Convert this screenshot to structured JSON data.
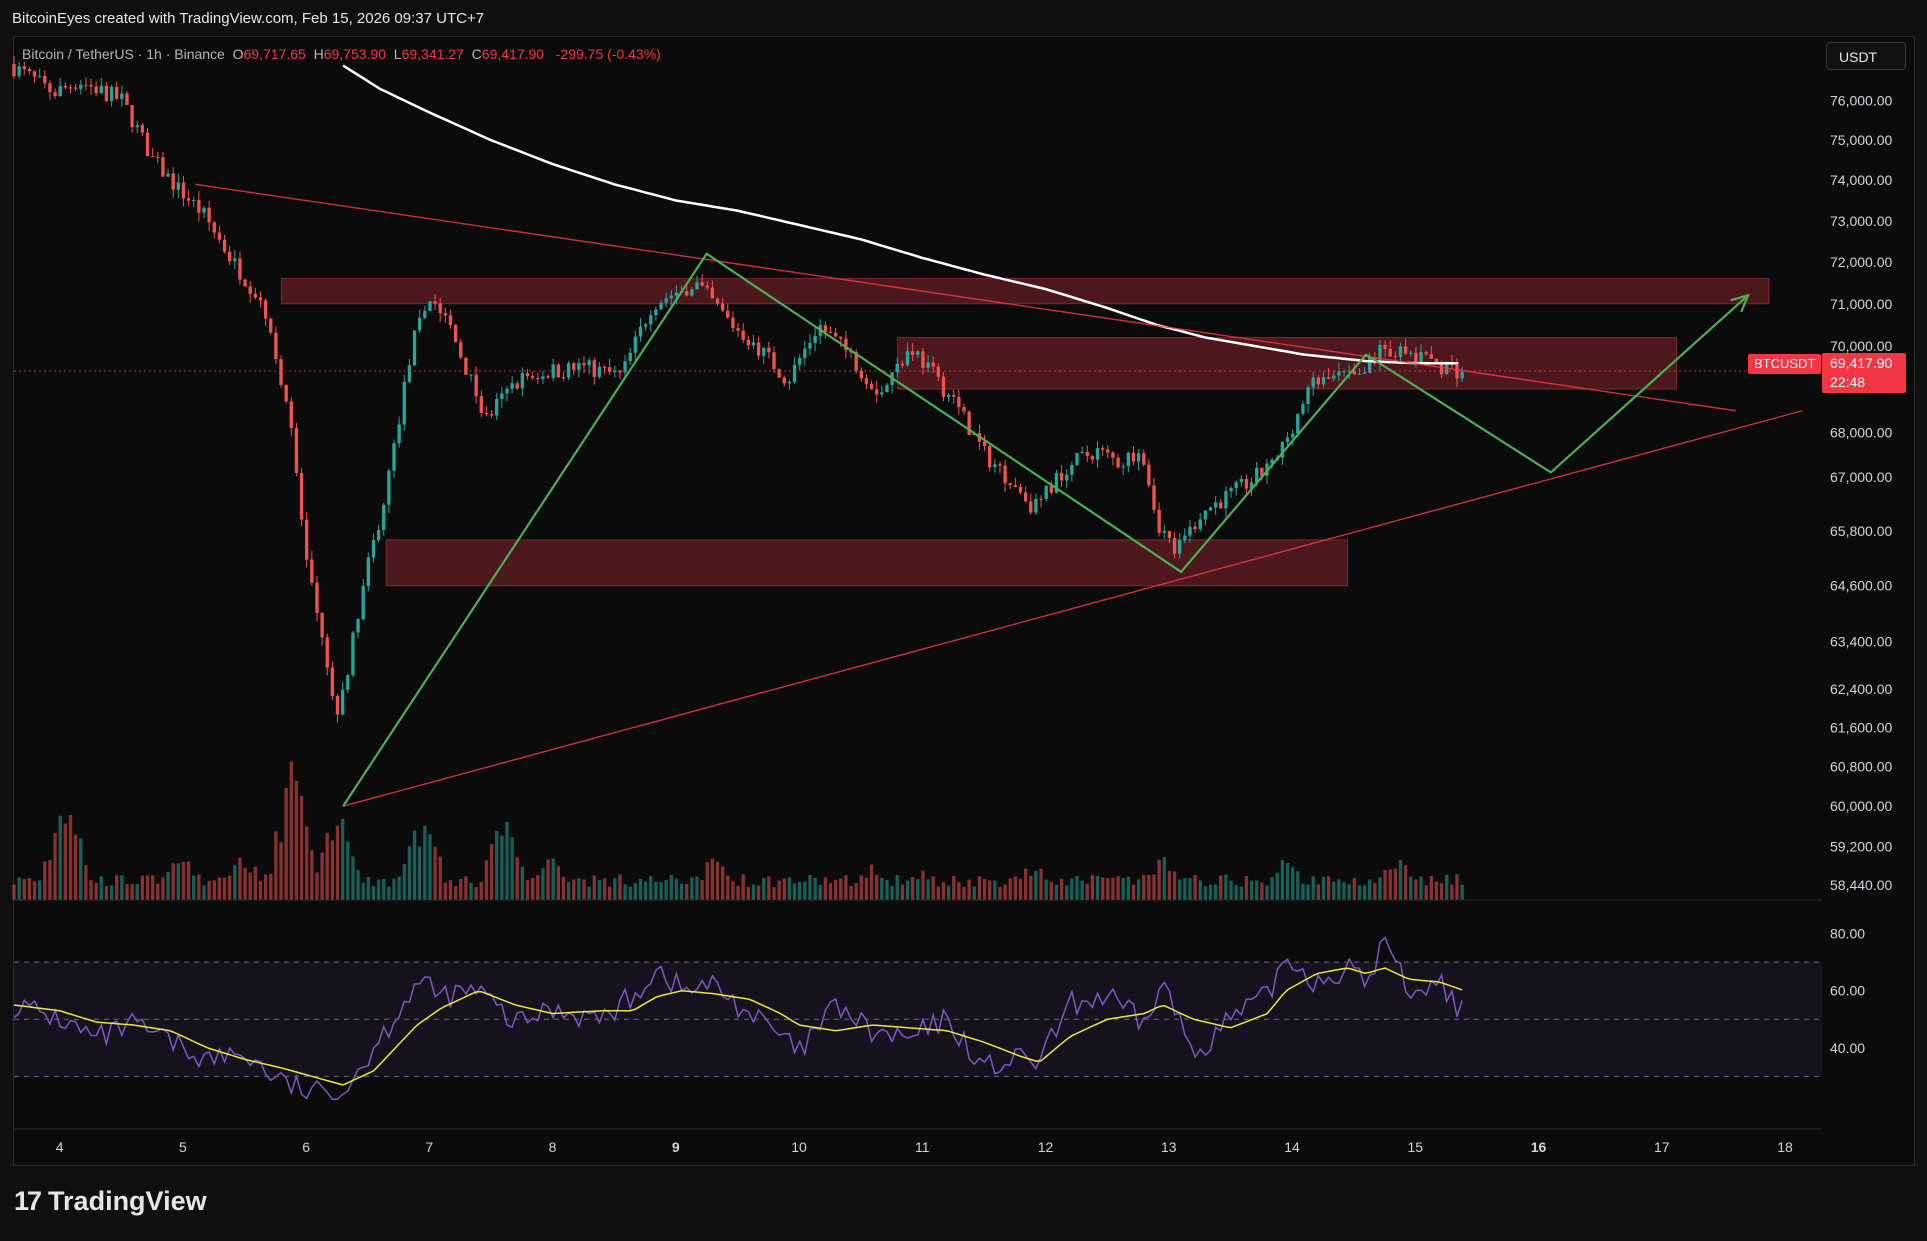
{
  "header": {
    "text": "BitcoinEyes created with TradingView.com, Feb 15, 2026 09:37 UTC+7"
  },
  "legend": {
    "symbol": "Bitcoin / TetherUS · 1h · Binance",
    "open_label": "O",
    "open": "69,717.65",
    "high_label": "H",
    "high": "69,753.90",
    "low_label": "L",
    "low": "69,341.27",
    "close_label": "C",
    "close": "69,417.90",
    "change": "-299.75 (-0.43%)"
  },
  "currency": "USDT",
  "symbol_tag": "BTCUSDT",
  "last_price": "69,417.90",
  "countdown": "22:48",
  "footer": {
    "brand": "TradingView",
    "logo_icon": "tradingview-logo-icon"
  },
  "colors": {
    "bull": "#26a69a",
    "bear": "#ef5350",
    "ma": "#ffffff",
    "rsi": "#7e57c2",
    "rsi_ma": "#e8e83a",
    "pattern": "#4caf50",
    "trend": "#f23645",
    "zone": "#5c1a22"
  },
  "chart_data": [
    {
      "type": "candlestick",
      "title": "",
      "price_axis_labels": [
        "76,000.00",
        "75,000.00",
        "74,000.00",
        "73,000.00",
        "72,000.00",
        "71,000.00",
        "70,000.00",
        "68,000.00",
        "67,000.00",
        "65,800.00",
        "64,600.00",
        "63,400.00",
        "62,400.00",
        "61,600.00",
        "60,800.00",
        "60,000.00",
        "59,200.00",
        "58,440.00"
      ],
      "x_axis_labels": [
        "4",
        "5",
        "6",
        "7",
        "8",
        "9",
        "10",
        "11",
        "12",
        "13",
        "14",
        "15",
        "16",
        "17",
        "18"
      ],
      "scale": "log",
      "y_range": [
        58300,
        77300
      ],
      "x_range_days": [
        3.63,
        18.3
      ],
      "ohlc_path_days": [
        3.6,
        4.0,
        4.2,
        4.55,
        4.8,
        5.0,
        5.2,
        5.45,
        5.7,
        5.9,
        6.05,
        6.2,
        6.3,
        6.5,
        6.7,
        6.9,
        7.05,
        7.2,
        7.5,
        7.75,
        8.0,
        8.3,
        8.6,
        8.85,
        9.2,
        9.5,
        9.7,
        9.95,
        10.2,
        10.45,
        10.7,
        10.95,
        11.3,
        11.55,
        11.8,
        11.95,
        12.2,
        12.45,
        12.65,
        12.82,
        12.95,
        13.1,
        13.3,
        13.6,
        13.9,
        14.2,
        14.45,
        14.6,
        14.75,
        14.95,
        15.2,
        15.4
      ],
      "ohlc_path_prices": [
        77000,
        76200,
        76500,
        76000,
        74500,
        73800,
        73200,
        72000,
        71000,
        68500,
        65000,
        63000,
        61800,
        64500,
        66800,
        70000,
        71200,
        70500,
        68300,
        69200,
        69400,
        69500,
        69300,
        71000,
        71500,
        70500,
        70000,
        69200,
        70500,
        69800,
        68900,
        70000,
        68700,
        67500,
        66800,
        66300,
        67200,
        67600,
        67300,
        67700,
        66000,
        65300,
        66200,
        66700,
        67300,
        69100,
        69300,
        69200,
        70000,
        69800,
        69600,
        69417.9
      ],
      "volume_peaks_days": [
        4.05,
        5.0,
        5.5,
        5.9,
        6.25,
        6.95,
        7.6,
        8.0,
        9.3,
        10.6,
        11.0,
        11.9,
        12.95,
        13.95,
        14.85,
        15.4
      ],
      "volume_peaks_heights": [
        0.58,
        0.26,
        0.24,
        0.76,
        0.48,
        0.46,
        0.44,
        0.26,
        0.23,
        0.2,
        0.16,
        0.2,
        0.22,
        0.22,
        0.24,
        0.04
      ],
      "moving_average_days": [
        6.3,
        6.6,
        7.0,
        7.5,
        8.0,
        8.5,
        9.0,
        9.5,
        10.0,
        10.5,
        11.0,
        11.5,
        12.0,
        12.5,
        12.9,
        13.3,
        13.7,
        14.1,
        14.6,
        15.0,
        15.4
      ],
      "moving_average_prices": [
        76900,
        76300,
        75700,
        75000,
        74400,
        73900,
        73500,
        73250,
        72900,
        72550,
        72100,
        71700,
        71350,
        70900,
        70500,
        70200,
        70000,
        69800,
        69650,
        69600,
        69600
      ],
      "zones": [
        {
          "from_day": 5.8,
          "to_day": 17.87,
          "low": 71000,
          "high": 71600
        },
        {
          "from_day": 10.8,
          "to_day": 17.12,
          "low": 69000,
          "high": 70200
        },
        {
          "from_day": 6.65,
          "to_day": 14.45,
          "low": 64600,
          "high": 65600
        }
      ],
      "trendlines": [
        {
          "from": [
            5.1,
            73900
          ],
          "to": [
            17.6,
            68500
          ]
        },
        {
          "from": [
            6.3,
            60000
          ],
          "to": [
            18.14,
            68500
          ]
        }
      ],
      "pattern_path": [
        [
          6.3,
          60000
        ],
        [
          9.25,
          72200
        ],
        [
          13.1,
          64900
        ],
        [
          14.6,
          69800
        ],
        [
          16.1,
          67100
        ],
        [
          17.7,
          71200
        ]
      ],
      "current_price": 69417.9
    },
    {
      "type": "line",
      "title": "",
      "y_axis_labels": [
        "80.00",
        "60.00",
        "40.00"
      ],
      "y_range": [
        20,
        90
      ],
      "band": [
        30,
        70
      ],
      "mid": 50,
      "rsi_path_days": [
        3.63,
        4.0,
        4.3,
        4.6,
        4.9,
        5.2,
        5.5,
        5.8,
        6.05,
        6.3,
        6.55,
        6.9,
        7.1,
        7.4,
        7.7,
        8.0,
        8.4,
        8.65,
        8.85,
        9.05,
        9.3,
        9.6,
        9.85,
        10.0,
        10.3,
        10.6,
        10.9,
        11.2,
        11.5,
        11.8,
        11.95,
        12.2,
        12.5,
        12.8,
        12.95,
        13.2,
        13.5,
        13.8,
        13.95,
        14.2,
        14.45,
        14.6,
        14.75,
        14.95,
        15.2,
        15.4
      ],
      "rsi_values": [
        55,
        50,
        43,
        48,
        42,
        36,
        38,
        28,
        24,
        25,
        40,
        63,
        58,
        60,
        48,
        54,
        50,
        58,
        68,
        60,
        62,
        52,
        44,
        38,
        55,
        45,
        43,
        50,
        33,
        36,
        35,
        55,
        58,
        48,
        63,
        38,
        50,
        58,
        72,
        63,
        68,
        62,
        78,
        60,
        63,
        52
      ],
      "rsi_ma_values": [
        55,
        53,
        49,
        48,
        46,
        40,
        36,
        33,
        30,
        27,
        32,
        48,
        54,
        60,
        55,
        52,
        53,
        53,
        58,
        60,
        59,
        57,
        52,
        48,
        46,
        48,
        47,
        46,
        42,
        37,
        35,
        44,
        50,
        52,
        55,
        50,
        47,
        52,
        60,
        66,
        68,
        66,
        68,
        64,
        63,
        60
      ]
    }
  ]
}
